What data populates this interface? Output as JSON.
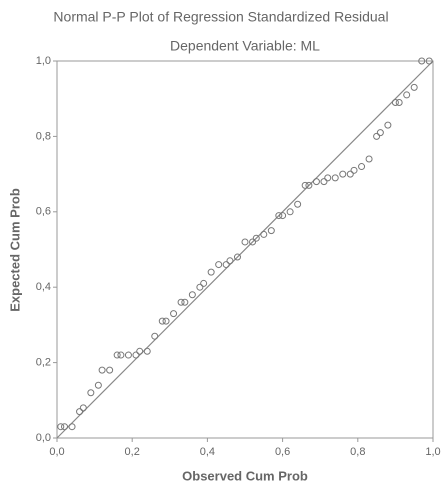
{
  "chart_data": {
    "type": "scatter",
    "title": "Normal P-P Plot of Regression Standardized Residual",
    "subtitle": "Dependent Variable: ML",
    "x_label": "Observed Cum Prob",
    "y_label": "Expected Cum Prob",
    "x": [
      0.01,
      0.02,
      0.04,
      0.06,
      0.07,
      0.09,
      0.11,
      0.12,
      0.14,
      0.16,
      0.17,
      0.19,
      0.21,
      0.22,
      0.24,
      0.26,
      0.28,
      0.29,
      0.31,
      0.33,
      0.34,
      0.36,
      0.38,
      0.39,
      0.41,
      0.43,
      0.45,
      0.46,
      0.48,
      0.5,
      0.52,
      0.53,
      0.55,
      0.57,
      0.59,
      0.6,
      0.62,
      0.64,
      0.66,
      0.67,
      0.69,
      0.71,
      0.72,
      0.74,
      0.76,
      0.78,
      0.79,
      0.81,
      0.83,
      0.85,
      0.86,
      0.88,
      0.9,
      0.91,
      0.93,
      0.95,
      0.97,
      0.99
    ],
    "values": [
      0.03,
      0.03,
      0.03,
      0.07,
      0.08,
      0.12,
      0.14,
      0.18,
      0.18,
      0.22,
      0.22,
      0.22,
      0.22,
      0.23,
      0.23,
      0.27,
      0.31,
      0.31,
      0.33,
      0.36,
      0.36,
      0.38,
      0.4,
      0.41,
      0.44,
      0.46,
      0.46,
      0.47,
      0.48,
      0.52,
      0.52,
      0.53,
      0.54,
      0.55,
      0.59,
      0.59,
      0.6,
      0.62,
      0.67,
      0.67,
      0.68,
      0.68,
      0.69,
      0.69,
      0.7,
      0.7,
      0.71,
      0.72,
      0.74,
      0.8,
      0.81,
      0.83,
      0.89,
      0.89,
      0.91,
      0.93,
      1.0,
      1.0
    ],
    "color": "#777777",
    "reference_line": true,
    "xlim": [
      0,
      1
    ],
    "ylim": [
      0,
      1
    ],
    "xticks": [
      {
        "value": 0,
        "label": "0,0"
      },
      {
        "value": 0.2,
        "label": "0,2"
      },
      {
        "value": 0.4,
        "label": "0,4"
      },
      {
        "value": 0.6,
        "label": "0,6"
      },
      {
        "value": 0.8,
        "label": "0,8"
      },
      {
        "value": 1,
        "label": "1,0"
      }
    ],
    "yticks": [
      {
        "value": 0,
        "label": "0,0"
      },
      {
        "value": 0.2,
        "label": "0,2"
      },
      {
        "value": 0.4,
        "label": "0,4"
      },
      {
        "value": 0.6,
        "label": "0,6"
      },
      {
        "value": 0.8,
        "label": "0,8"
      },
      {
        "value": 1,
        "label": "1,0"
      }
    ]
  }
}
